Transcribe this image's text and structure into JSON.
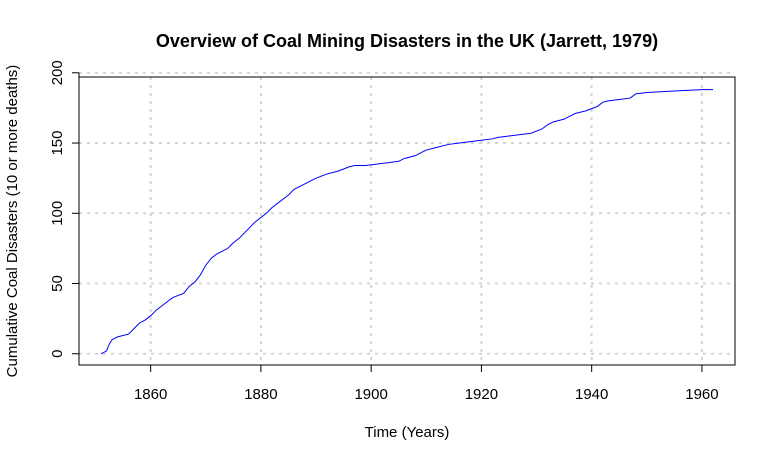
{
  "chart_data": {
    "type": "line",
    "title": "Overview of Coal Mining Disasters in the UK (Jarrett, 1979)",
    "xlabel": "Time (Years)",
    "ylabel": "Cumulative Coal Disasters (10 or more deaths)",
    "xlim": [
      1847,
      1966
    ],
    "ylim": [
      -8,
      197
    ],
    "x_ticks": [
      1860,
      1880,
      1900,
      1920,
      1940,
      1960
    ],
    "y_ticks": [
      0,
      50,
      100,
      150,
      200
    ],
    "grid": true,
    "line_color": "#0000ff",
    "series": [
      {
        "x": [
          1851.0,
          1852.0,
          1852.5,
          1853.0,
          1854.0,
          1856.0,
          1857.0,
          1858.0,
          1859.0,
          1860.0,
          1861.0,
          1862.0,
          1863.0,
          1864.0,
          1866.0,
          1867.0,
          1868.0,
          1869.0,
          1870.0,
          1871.0,
          1872.0,
          1873.0,
          1874.0,
          1875.0,
          1876.0,
          1877.0,
          1878.0,
          1879.0,
          1880.0,
          1881.0,
          1882.0,
          1883.0,
          1884.0,
          1885.0,
          1886.0,
          1887.0,
          1888.0,
          1889.0,
          1890.0,
          1892.0,
          1894.0,
          1896.0,
          1897.0,
          1899.0,
          1901.0,
          1903.0,
          1905.0,
          1906.0,
          1908.0,
          1909.0,
          1910.0,
          1912.0,
          1914.0,
          1916.0,
          1918.0,
          1920.0,
          1922.0,
          1923.0,
          1925.0,
          1927.0,
          1929.0,
          1931.0,
          1932.0,
          1933.0,
          1935.0,
          1936.0,
          1937.0,
          1939.0,
          1941.0,
          1942.0,
          1943.0,
          1945.0,
          1947.0,
          1948.0,
          1950.0,
          1955.0,
          1960.0,
          1962.0
        ],
        "y": [
          0,
          2,
          7,
          10,
          12,
          14,
          18,
          22,
          24,
          27,
          31,
          34,
          37,
          40,
          43,
          48,
          51,
          56,
          63,
          68,
          71,
          73,
          75,
          79,
          82,
          86,
          90,
          94,
          97,
          100,
          104,
          107,
          110,
          113,
          117,
          119,
          121,
          123,
          125,
          128,
          130,
          133,
          134,
          134,
          135,
          136,
          137,
          139,
          141,
          143,
          145,
          147,
          149,
          150,
          151,
          152,
          153,
          154,
          155,
          156,
          157,
          160,
          163,
          165,
          167,
          169,
          171,
          173,
          176,
          179,
          180,
          181,
          182,
          185,
          186,
          187,
          188,
          188
        ]
      }
    ]
  }
}
